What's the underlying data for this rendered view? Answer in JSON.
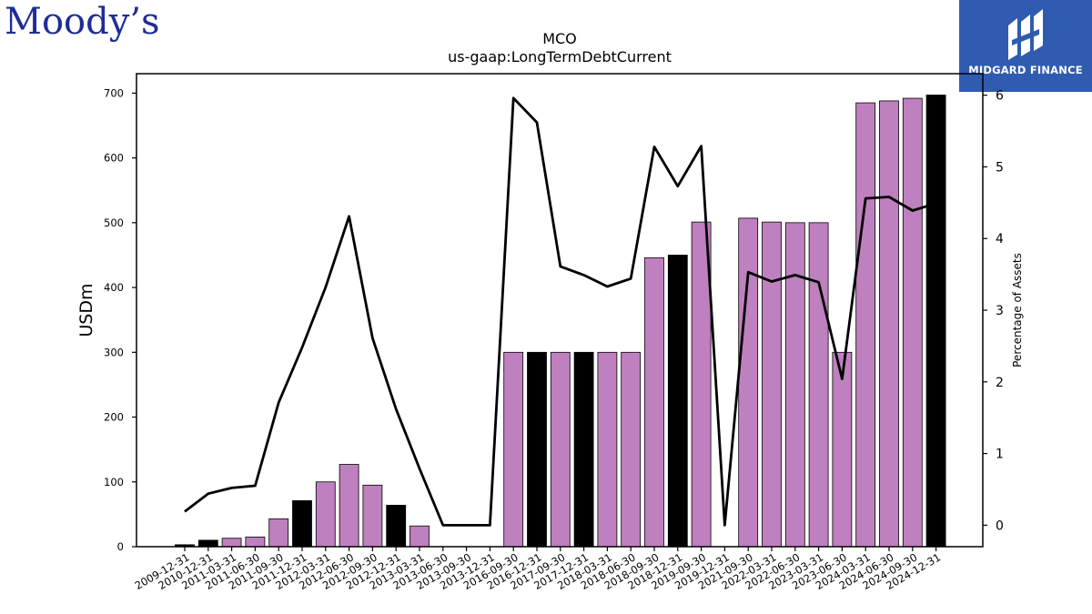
{
  "brand": {
    "left_logo": "Moody’s",
    "right_logo": "MIDGARD FINANCE"
  },
  "chart_data": {
    "type": "bar",
    "title": "MCO",
    "subtitle": "us-gaap:LongTermDebtCurrent",
    "ylabel": "USDm",
    "y2label": "Percentage of Assets",
    "ylim": [
      0,
      730
    ],
    "y2lim": [
      -0.3,
      6.3
    ],
    "yticks": [
      0,
      100,
      200,
      300,
      400,
      500,
      600,
      700
    ],
    "y2ticks": [
      0,
      1,
      2,
      3,
      4,
      5,
      6
    ],
    "grid": false,
    "colors": {
      "annual": "#000000",
      "quarterly": "#bf80bf",
      "line": "#000000"
    },
    "categories": [
      "2009-12-31",
      "2010-12-31",
      "2011-03-31",
      "2011-06-30",
      "2011-09-30",
      "2011-12-31",
      "2012-03-31",
      "2012-06-30",
      "2012-09-30",
      "2012-12-31",
      "2013-03-31",
      "2013-06-30",
      "2013-09-30",
      "2013-12-31",
      "2016-09-30",
      "2016-12-31",
      "2017-09-30",
      "2017-12-31",
      "2018-03-31",
      "2018-06-30",
      "2018-09-30",
      "2018-12-31",
      "2019-09-30",
      "2019-12-31",
      "2021-09-30",
      "2022-03-31",
      "2022-06-30",
      "2023-03-31",
      "2023-06-30",
      "2024-03-31",
      "2024-06-30",
      "2024-09-30",
      "2024-12-31"
    ],
    "series": [
      {
        "type": "bar",
        "values": [
          3,
          10,
          13,
          15,
          43,
          71,
          100,
          127,
          95,
          64,
          32,
          0,
          0,
          0,
          300,
          300,
          300,
          300,
          300,
          300,
          446,
          450,
          501,
          0,
          507,
          501,
          500,
          500,
          300,
          685,
          688,
          692,
          697
        ],
        "period": [
          "annual",
          "annual",
          "quarterly",
          "quarterly",
          "quarterly",
          "annual",
          "quarterly",
          "quarterly",
          "quarterly",
          "annual",
          "quarterly",
          "quarterly",
          "quarterly",
          "annual",
          "quarterly",
          "annual",
          "quarterly",
          "annual",
          "quarterly",
          "quarterly",
          "quarterly",
          "annual",
          "quarterly",
          "annual",
          "quarterly",
          "quarterly",
          "quarterly",
          "quarterly",
          "quarterly",
          "quarterly",
          "quarterly",
          "quarterly",
          "annual"
        ]
      },
      {
        "type": "line",
        "axis": "right",
        "values": [
          0.19,
          0.44,
          0.52,
          0.55,
          1.71,
          2.48,
          3.32,
          4.31,
          2.61,
          1.62,
          0.79,
          0,
          0,
          0,
          5.96,
          5.62,
          3.61,
          3.49,
          3.33,
          3.44,
          5.28,
          4.73,
          5.29,
          0,
          3.53,
          3.4,
          3.49,
          3.39,
          2.04,
          4.56,
          4.58,
          4.39,
          4.49
        ]
      }
    ]
  }
}
